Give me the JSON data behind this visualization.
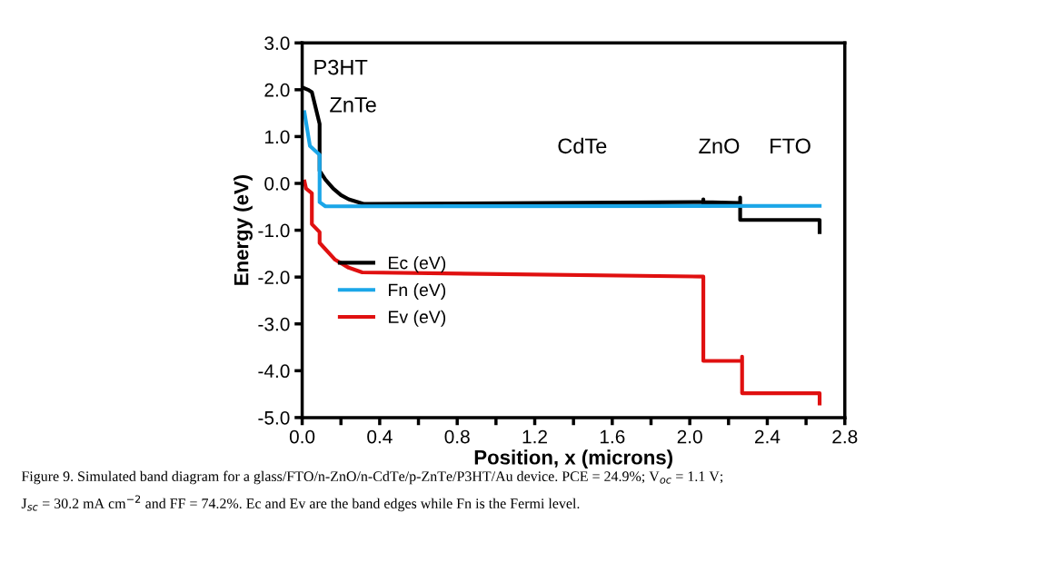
{
  "chart_data": {
    "type": "line",
    "xlabel": "Position, x (microns)",
    "ylabel": "Energy (eV)",
    "xlim": [
      0,
      2.8
    ],
    "ylim": [
      -5.0,
      3.0
    ],
    "xticks": [
      {
        "value": 0,
        "label": "0.0"
      },
      {
        "value": 0.2,
        "label": null
      },
      {
        "value": 0.4,
        "label": "0.4"
      },
      {
        "value": 0.6,
        "label": null
      },
      {
        "value": 0.8,
        "label": "0.8"
      },
      {
        "value": 1.0,
        "label": null
      },
      {
        "value": 1.2,
        "label": "1.2"
      },
      {
        "value": 1.4,
        "label": null
      },
      {
        "value": 1.6,
        "label": "1.6"
      },
      {
        "value": 1.8,
        "label": null
      },
      {
        "value": 2.0,
        "label": "2.0"
      },
      {
        "value": 2.2,
        "label": null
      },
      {
        "value": 2.4,
        "label": "2.4"
      },
      {
        "value": 2.6,
        "label": null
      },
      {
        "value": 2.8,
        "label": "2.8"
      }
    ],
    "yticks": [
      {
        "value": -5,
        "label": "-5.0"
      },
      {
        "value": -4,
        "label": "-4.0"
      },
      {
        "value": -3,
        "label": "-3.0"
      },
      {
        "value": -2,
        "label": "-2.0"
      },
      {
        "value": -1,
        "label": "-1.0"
      },
      {
        "value": 0,
        "label": "0.0"
      },
      {
        "value": 1,
        "label": "1.0"
      },
      {
        "value": 2,
        "label": "2.0"
      },
      {
        "value": 3,
        "label": "3.0"
      }
    ],
    "grid": false,
    "legend": "bottom left",
    "marker": "none",
    "line_style": "solid",
    "series": [
      {
        "name": "Ec (eV)",
        "color": "#000000",
        "x": [
          0,
          0.03,
          0.05,
          0.09,
          0.09,
          0.12,
          0.16,
          0.2,
          0.24,
          0.32,
          2.07,
          2.07,
          2.07,
          2.07,
          2.26,
          2.26,
          2.26,
          2.67,
          2.67
        ],
        "values": [
          2.05,
          2.0,
          1.95,
          1.27,
          0.27,
          0.08,
          -0.11,
          -0.25,
          -0.34,
          -0.44,
          -0.4,
          -0.34,
          -0.46,
          -0.4,
          -0.42,
          -0.3,
          -0.78,
          -0.78,
          -1.08
        ]
      },
      {
        "name": "Fn (eV)",
        "color": "#1ba6e8",
        "x": [
          0.01,
          0.04,
          0.09,
          0.09,
          0.12,
          2.68
        ],
        "values": [
          1.56,
          0.8,
          0.61,
          -0.4,
          -0.49,
          -0.48
        ]
      },
      {
        "name": "Ev (eV)",
        "color": "#e01010",
        "x": [
          0.01,
          0.02,
          0.05,
          0.05,
          0.09,
          0.09,
          0.17,
          0.24,
          0.31,
          2.07,
          2.07,
          2.27,
          2.27,
          2.27,
          2.67,
          2.67
        ],
        "values": [
          0.08,
          -0.11,
          -0.21,
          -0.87,
          -1.04,
          -1.27,
          -1.63,
          -1.8,
          -1.9,
          -1.99,
          -3.79,
          -3.79,
          -3.7,
          -4.48,
          -4.48,
          -4.74
        ]
      }
    ],
    "annotations": [
      "P3HT",
      "ZnTe",
      "CdTe",
      "ZnO",
      "FTO",
      "Figure 9. Simulated band diagram for a glass/FTO/n-ZnO/n-CdTe/p-ZnTe/P3HT/Au device. PCE = 24.9%; V$_{oc}$ = 1.1 V;",
      "J$_{sc}$ = 30.2 mA cm$^{−2}$ and FF = 74.2%. Ec and Ev are the band edges while Fn is the Fermi level."
    ]
  }
}
